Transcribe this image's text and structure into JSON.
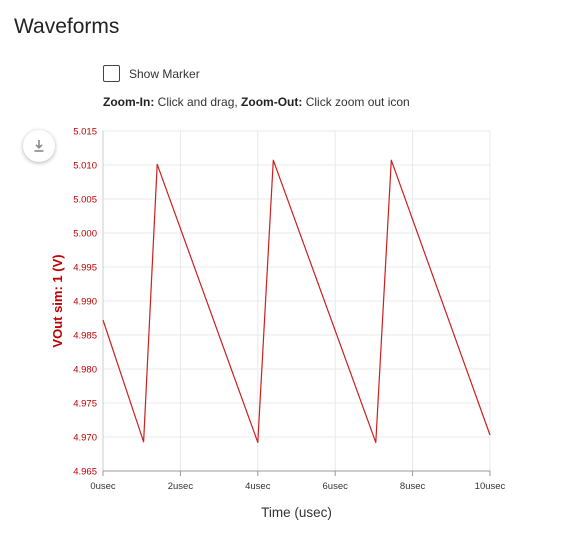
{
  "page": {
    "title": "Waveforms"
  },
  "controls": {
    "show_marker_label": "Show Marker",
    "zoom_in_label": "Zoom-In:",
    "zoom_in_text": " Click and drag, ",
    "zoom_out_label": "Zoom-Out:",
    "zoom_out_text": " Click zoom out icon"
  },
  "icons": {
    "download": "download-icon"
  },
  "colors": {
    "series": "#cc1f1f",
    "axis_text": "#c00000",
    "grid": "#e8e8e8"
  },
  "chart_data": {
    "type": "line",
    "xlabel": "Time (usec)",
    "ylabel": "VOut sim: 1 (V)",
    "xlim": [
      0,
      10
    ],
    "ylim": [
      4.965,
      5.015
    ],
    "x_ticks": [
      "0usec",
      "2usec",
      "4usec",
      "6usec",
      "8usec",
      "10usec"
    ],
    "y_ticks": [
      "5.015",
      "5.010",
      "5.005",
      "5.000",
      "4.995",
      "4.990",
      "4.985",
      "4.980",
      "4.975",
      "4.970",
      "4.965"
    ],
    "grid": true,
    "series": [
      {
        "x": [
          0,
          1.05,
          1.4,
          4.0,
          4.4,
          7.05,
          7.45,
          10.0
        ],
        "y": [
          4.9872,
          4.9693,
          5.0101,
          4.9692,
          5.0107,
          4.9692,
          5.0107,
          4.9703
        ]
      }
    ]
  }
}
